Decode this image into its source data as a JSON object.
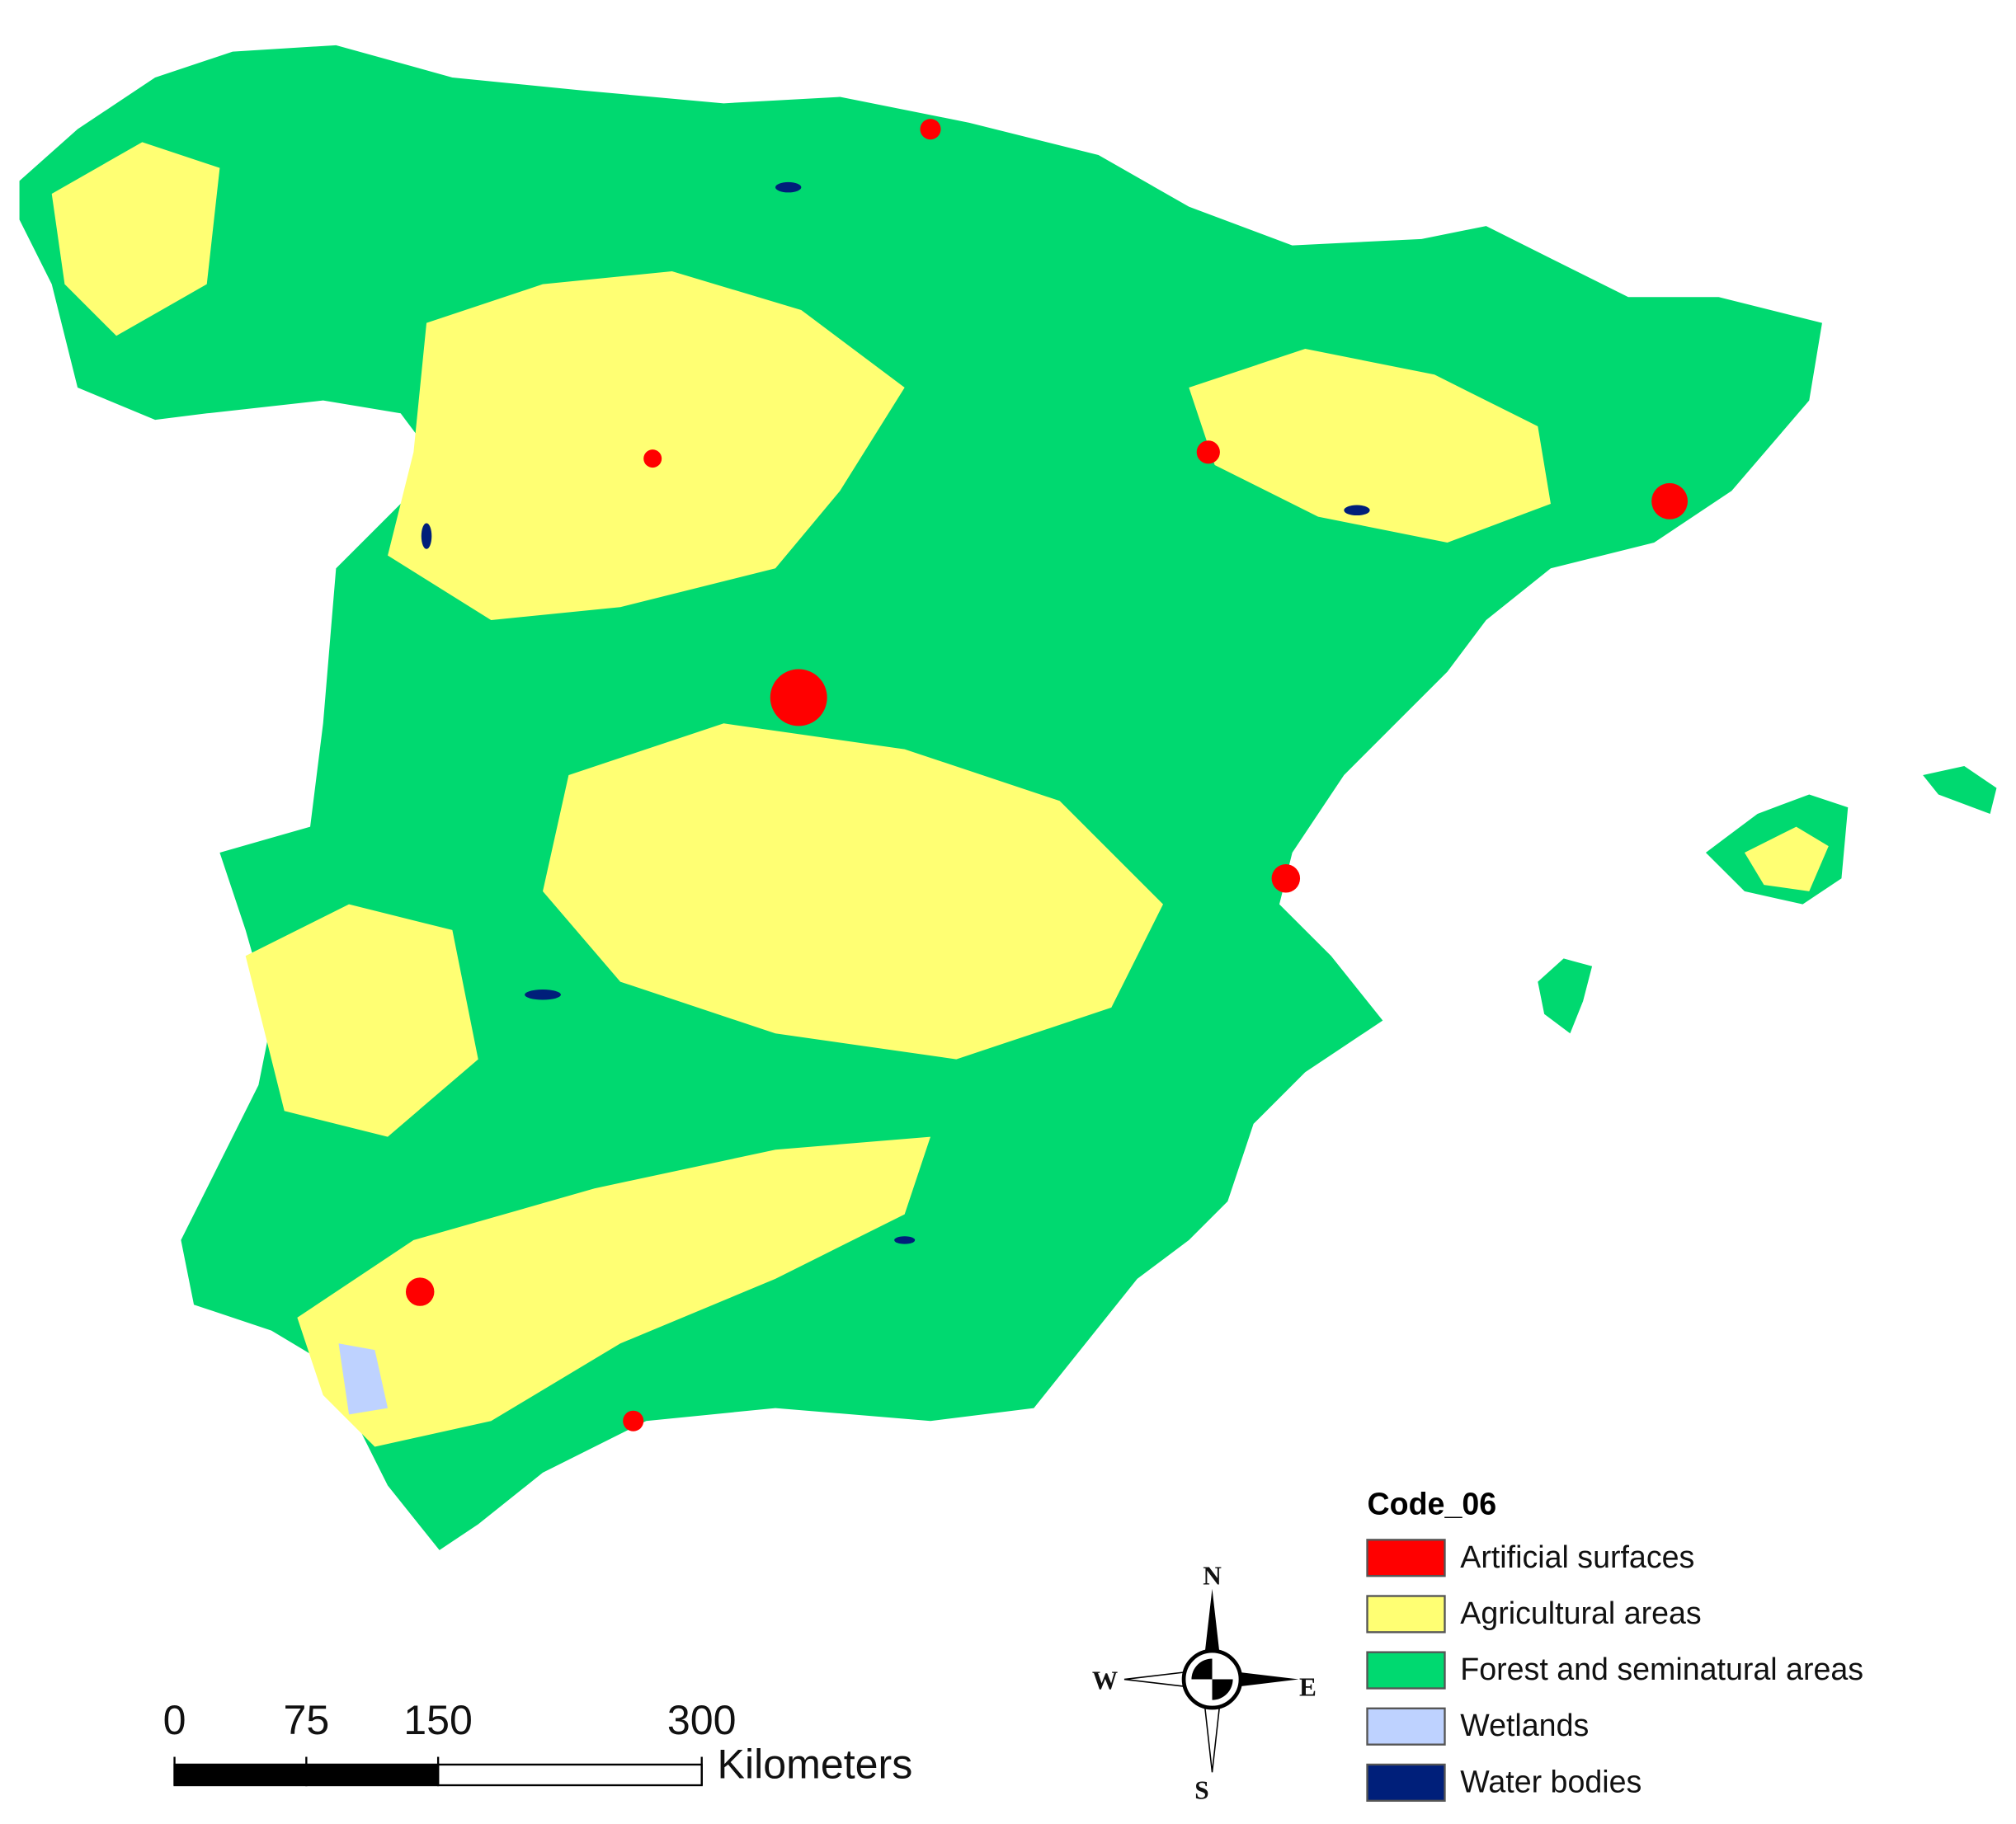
{
  "legend": {
    "title": "Code_06",
    "items": [
      {
        "label": "Artificial surfaces",
        "color": "#ff0000"
      },
      {
        "label": "Agricultural areas",
        "color": "#ffff73"
      },
      {
        "label": "Forest and seminatural areas",
        "color": "#00d970"
      },
      {
        "label": "Wetlands",
        "color": "#bed2ff"
      },
      {
        "label": "Water bodies",
        "color": "#001f7a"
      }
    ]
  },
  "scale_bar": {
    "ticks": [
      0,
      75,
      150,
      300
    ],
    "unit": "Kilometers"
  },
  "compass": {
    "north": "N",
    "south": "S",
    "west": "W",
    "east": "E"
  }
}
